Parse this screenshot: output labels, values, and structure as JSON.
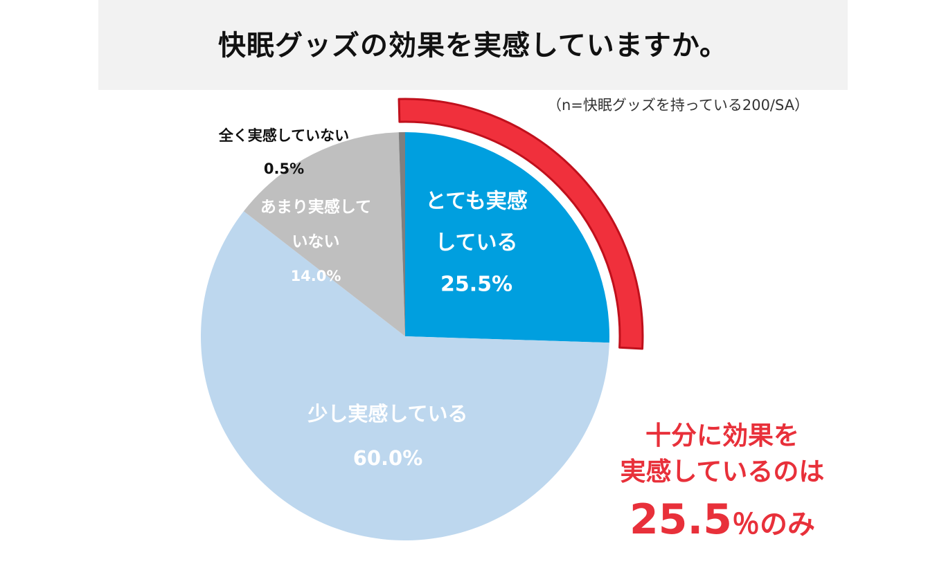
{
  "title": "快眠グッズの効果を実感していますか。",
  "note": "（n=快眠グッズを持っている200/SA）",
  "chart_data": {
    "type": "pie",
    "start": "12 o'clock",
    "direction": "clockwise",
    "slices": [
      {
        "name": "とても実感している",
        "lines": [
          "とても実感",
          "している"
        ],
        "value": 25.5,
        "label": "25.5%",
        "color": "#009fdf",
        "text_color": "#ffffff"
      },
      {
        "name": "少し実感している",
        "lines": [
          "少し実感している"
        ],
        "value": 60.0,
        "label": "60.0%",
        "color": "#bdd7ee",
        "text_color": "#ffffff"
      },
      {
        "name": "あまり実感していない",
        "lines": [
          "あまり実感して",
          "いない"
        ],
        "value": 14.0,
        "label": "14.0%",
        "color": "#bfbfbf",
        "text_color": "#ffffff"
      },
      {
        "name": "全く実感していない",
        "lines": [
          "全く実感していない"
        ],
        "value": 0.5,
        "label": "0.5%",
        "color": "#7f7f7f",
        "text_color": "#111111"
      }
    ],
    "highlight": {
      "slice": "とても実感している",
      "color": "#f0303c",
      "edge_color": "#c0101c"
    }
  },
  "callout": {
    "line1": "十分に効果を",
    "line2": "実感しているのは",
    "value": "25.5",
    "suffix": "％のみ"
  }
}
